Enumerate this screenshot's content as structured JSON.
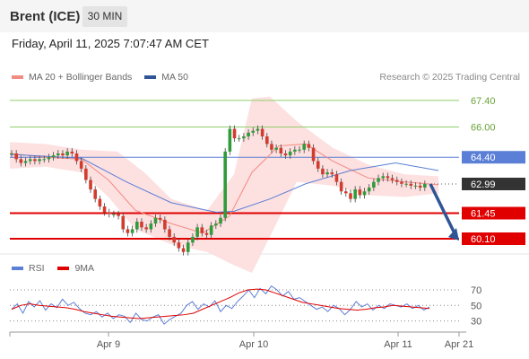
{
  "header": {
    "instrument": "Brent (ICE)",
    "timeframe": "30 MIN"
  },
  "timestamp": "Friday, April 11, 2025 7:07:47 AM CET",
  "legend": {
    "main": [
      {
        "name": "MA 20 + Bollinger Bands",
        "color": "#f28b82"
      },
      {
        "name": "MA 50",
        "color": "#2f5597"
      }
    ],
    "rsi": [
      {
        "name": "RSI",
        "color": "#5b7fd6"
      },
      {
        "name": "9MA",
        "color": "#e00000"
      }
    ]
  },
  "credit": "Research © 2025 Trading Central",
  "colors": {
    "resistance_green": "#8fcf6b",
    "pivot_blue": "#5b7fd6",
    "support_red": "#e00000",
    "price_box": "#333333",
    "bollinger_fill": "#fde0e0",
    "arrow": "#2f5597"
  },
  "chart_data": {
    "type": "candlestick",
    "x_labels": [
      "Apr 9",
      "Apr 10",
      "Apr 11",
      "Apr 21"
    ],
    "ylim": [
      59.2,
      68.2
    ],
    "price_levels": [
      {
        "value": 67.4,
        "label": "67.40",
        "kind": "resistance"
      },
      {
        "value": 66.0,
        "label": "66.00",
        "kind": "resistance"
      },
      {
        "value": 64.4,
        "label": "64.40",
        "kind": "pivot"
      },
      {
        "value": 62.99,
        "label": "62.99",
        "kind": "last"
      },
      {
        "value": 61.45,
        "label": "61.45",
        "kind": "support"
      },
      {
        "value": 60.1,
        "label": "60.10",
        "kind": "support"
      }
    ],
    "close_series": [
      64.6,
      64.3,
      64.1,
      64.2,
      64.3,
      64.2,
      64.3,
      64.3,
      64.4,
      64.5,
      64.6,
      64.5,
      64.7,
      64.6,
      64.2,
      63.8,
      63.2,
      62.7,
      62.2,
      61.8,
      61.5,
      61.4,
      61.4,
      61.3,
      60.6,
      60.4,
      60.6,
      61.0,
      60.7,
      60.6,
      60.9,
      61.2,
      61.1,
      60.6,
      60.2,
      59.9,
      59.6,
      59.4,
      59.9,
      60.2,
      60.7,
      60.4,
      60.3,
      60.8,
      60.9,
      61.2,
      64.7,
      65.9,
      65.4,
      65.4,
      65.5,
      65.7,
      65.8,
      65.9,
      65.5,
      65.1,
      64.8,
      64.9,
      64.6,
      64.5,
      64.7,
      64.8,
      64.8,
      65.1,
      64.9,
      64.2,
      63.8,
      63.5,
      63.6,
      63.5,
      63.1,
      62.6,
      62.5,
      62.2,
      62.7,
      62.4,
      62.6,
      62.8,
      63.1,
      63.3,
      63.4,
      63.3,
      63.2,
      63.1,
      63.0,
      63.0,
      62.9,
      62.9,
      62.8,
      62.99
    ],
    "ma50": [
      [
        0,
        64.55
      ],
      [
        80,
        64.35
      ],
      [
        130,
        63.1
      ],
      [
        180,
        62.0
      ],
      [
        230,
        61.5
      ],
      [
        250,
        61.55
      ],
      [
        290,
        62.2
      ],
      [
        330,
        63.0
      ],
      [
        380,
        63.7
      ],
      [
        430,
        64.1
      ],
      [
        478,
        63.7
      ]
    ],
    "ma20": [
      [
        0,
        64.6
      ],
      [
        40,
        64.4
      ],
      [
        80,
        64.3
      ],
      [
        110,
        63.2
      ],
      [
        140,
        61.6
      ],
      [
        180,
        60.9
      ],
      [
        215,
        60.4
      ],
      [
        245,
        61.3
      ],
      [
        270,
        63.6
      ],
      [
        300,
        65.0
      ],
      [
        330,
        65.1
      ],
      [
        360,
        64.2
      ],
      [
        400,
        63.3
      ],
      [
        440,
        63.1
      ],
      [
        478,
        62.95
      ]
    ],
    "bb_upper": [
      [
        0,
        65.2
      ],
      [
        40,
        65.1
      ],
      [
        80,
        64.8
      ],
      [
        120,
        64.7
      ],
      [
        150,
        63.6
      ],
      [
        180,
        62.2
      ],
      [
        220,
        61.6
      ],
      [
        250,
        63.5
      ],
      [
        270,
        67.5
      ],
      [
        290,
        67.6
      ],
      [
        320,
        66.3
      ],
      [
        360,
        64.9
      ],
      [
        400,
        64.0
      ],
      [
        440,
        63.5
      ],
      [
        478,
        63.4
      ]
    ],
    "bb_lower": [
      [
        0,
        63.8
      ],
      [
        40,
        63.9
      ],
      [
        80,
        63.6
      ],
      [
        110,
        62.3
      ],
      [
        140,
        60.6
      ],
      [
        180,
        59.8
      ],
      [
        220,
        59.4
      ],
      [
        250,
        58.7
      ],
      [
        270,
        58.3
      ],
      [
        290,
        60.2
      ],
      [
        320,
        63.1
      ],
      [
        360,
        62.9
      ],
      [
        400,
        62.4
      ],
      [
        440,
        62.3
      ],
      [
        478,
        62.5
      ]
    ],
    "forecast_arrow": {
      "from": 62.99,
      "to": 60.1
    },
    "rsi": {
      "levels": [
        70,
        50,
        30
      ],
      "ylim": [
        18,
        85
      ],
      "rsi_values": [
        45,
        52,
        40,
        55,
        48,
        56,
        44,
        52,
        47,
        58,
        50,
        54,
        46,
        40,
        38,
        42,
        35,
        40,
        33,
        38,
        36,
        28,
        40,
        32,
        30,
        35,
        38,
        26,
        32,
        36,
        40,
        50,
        55,
        45,
        52,
        48,
        56,
        42,
        50,
        46,
        55,
        62,
        70,
        60,
        72,
        65,
        75,
        70,
        62,
        68,
        58,
        60,
        55,
        50,
        45,
        48,
        42,
        50,
        46,
        38,
        45,
        55,
        48,
        52,
        44,
        50,
        46,
        52,
        50,
        48,
        52,
        46,
        50,
        44,
        48
      ],
      "ma9_values": [
        45,
        50,
        52,
        50,
        49,
        48,
        47,
        45,
        42,
        40,
        38,
        36,
        35,
        34,
        33,
        34,
        35,
        36,
        37,
        38,
        40,
        45,
        50,
        55,
        60,
        66,
        70,
        71,
        70,
        66,
        62,
        58,
        54,
        52,
        50,
        48,
        46,
        45,
        44,
        45,
        47,
        48,
        50,
        49,
        48,
        47,
        46
      ]
    }
  }
}
